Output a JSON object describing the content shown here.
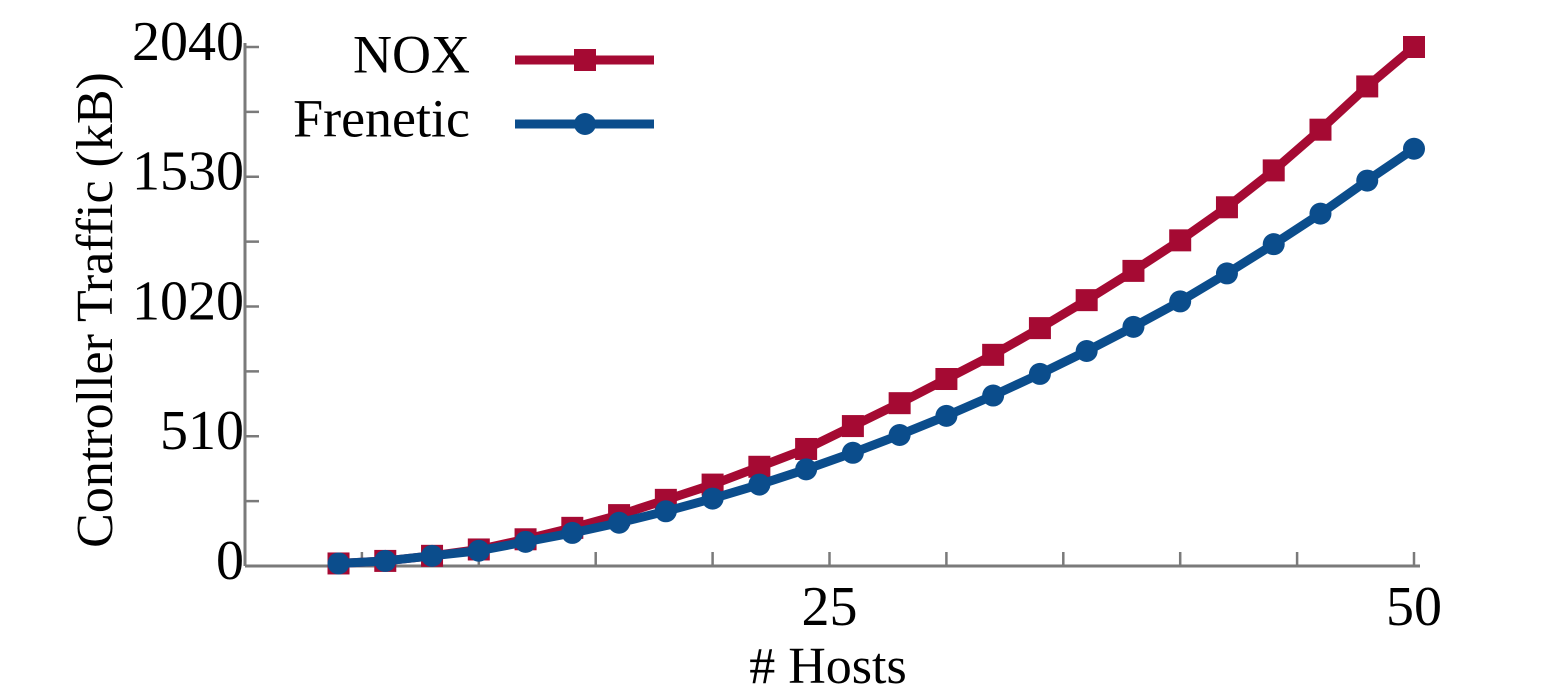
{
  "chart_data": {
    "type": "line",
    "xlabel": "# Hosts",
    "ylabel": "Controller Traffic (kB)",
    "xlim": [
      0,
      50
    ],
    "ylim": [
      0,
      2040
    ],
    "x_ticks": [
      25,
      50
    ],
    "y_ticks": [
      0,
      510,
      1020,
      1530,
      2040
    ],
    "x": [
      4,
      6,
      8,
      10,
      12,
      14,
      16,
      18,
      20,
      22,
      24,
      26,
      28,
      30,
      32,
      34,
      36,
      38,
      40,
      42,
      44,
      46,
      48,
      50
    ],
    "series": [
      {
        "name": "NOX",
        "color": "#a50a33",
        "marker": "square",
        "values": [
          10,
          20,
          40,
          65,
          105,
          150,
          200,
          260,
          320,
          390,
          460,
          550,
          640,
          735,
          830,
          935,
          1045,
          1160,
          1280,
          1410,
          1555,
          1715,
          1885,
          2040
        ]
      },
      {
        "name": "Frenetic",
        "color": "#0b4d8c",
        "marker": "circle",
        "values": [
          10,
          20,
          40,
          60,
          95,
          130,
          170,
          215,
          265,
          320,
          380,
          445,
          515,
          590,
          670,
          755,
          845,
          940,
          1040,
          1150,
          1265,
          1385,
          1515,
          1640
        ]
      }
    ],
    "legend": {
      "position": "top-left",
      "entries": [
        "NOX",
        "Frenetic"
      ]
    },
    "grid": false
  }
}
